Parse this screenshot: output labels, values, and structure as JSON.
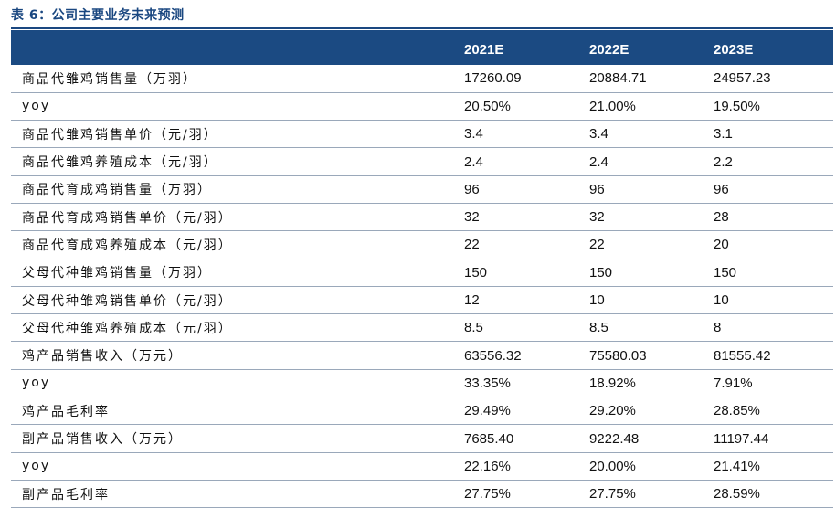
{
  "caption": "表 6：公司主要业务未来预测",
  "columns": [
    "",
    "2021E",
    "2022E",
    "2023E"
  ],
  "rows": [
    {
      "label": "商品代雏鸡销售量（万羽）",
      "values": [
        "17260.09",
        "20884.71",
        "24957.23"
      ]
    },
    {
      "label": "yoy",
      "values": [
        "20.50%",
        "21.00%",
        "19.50%"
      ]
    },
    {
      "label": "商品代雏鸡销售单价（元/羽）",
      "values": [
        "3.4",
        "3.4",
        "3.1"
      ]
    },
    {
      "label": "商品代雏鸡养殖成本（元/羽）",
      "values": [
        "2.4",
        "2.4",
        "2.2"
      ]
    },
    {
      "label": "商品代育成鸡销售量（万羽）",
      "values": [
        "96",
        "96",
        "96"
      ]
    },
    {
      "label": "商品代育成鸡销售单价（元/羽）",
      "values": [
        "32",
        "32",
        "28"
      ]
    },
    {
      "label": "商品代育成鸡养殖成本（元/羽）",
      "values": [
        "22",
        "22",
        "20"
      ]
    },
    {
      "label": "父母代种雏鸡销售量（万羽）",
      "values": [
        "150",
        "150",
        "150"
      ]
    },
    {
      "label": "父母代种雏鸡销售单价（元/羽）",
      "values": [
        "12",
        "10",
        "10"
      ]
    },
    {
      "label": "父母代种雏鸡养殖成本（元/羽）",
      "values": [
        "8.5",
        "8.5",
        "8"
      ]
    },
    {
      "label": "鸡产品销售收入（万元）",
      "values": [
        "63556.32",
        "75580.03",
        "81555.42"
      ]
    },
    {
      "label": "yoy",
      "values": [
        "33.35%",
        "18.92%",
        "7.91%"
      ]
    },
    {
      "label": "鸡产品毛利率",
      "values": [
        "29.49%",
        "29.20%",
        "28.85%"
      ]
    },
    {
      "label": "副产品销售收入（万元）",
      "values": [
        "7685.40",
        "9222.48",
        "11197.44"
      ]
    },
    {
      "label": "yoy",
      "values": [
        "22.16%",
        "20.00%",
        "21.41%"
      ]
    },
    {
      "label": "副产品毛利率",
      "values": [
        "27.75%",
        "27.75%",
        "28.59%"
      ]
    }
  ]
}
